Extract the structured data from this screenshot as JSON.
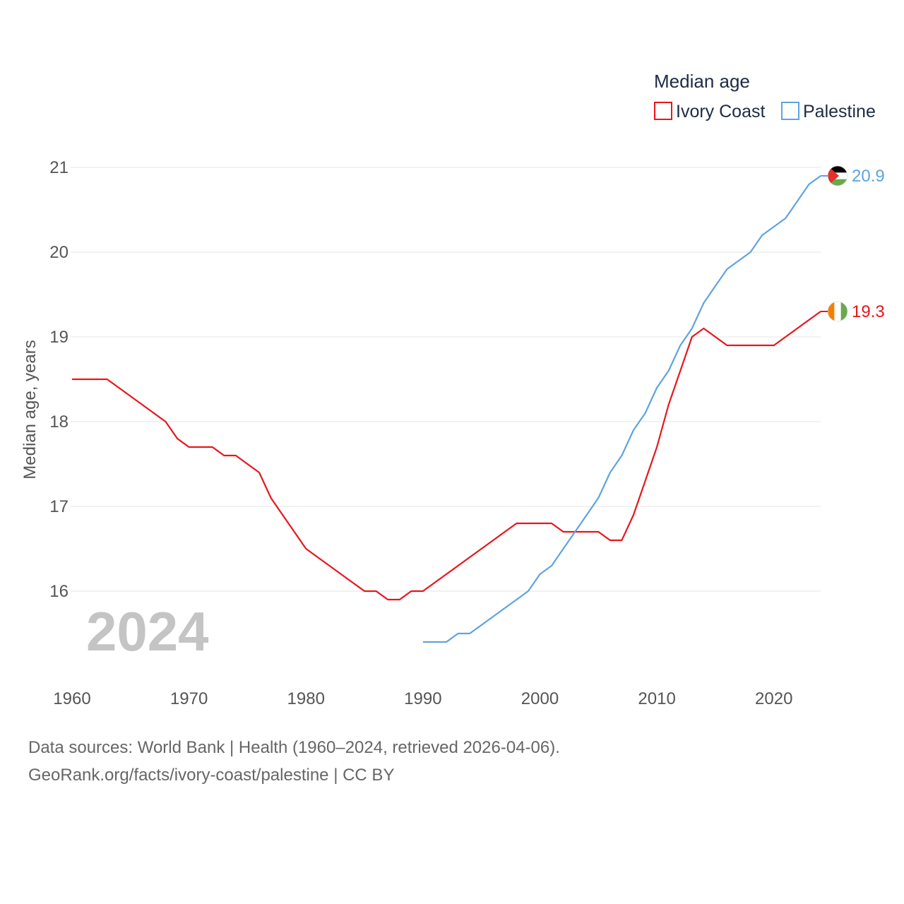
{
  "chart_data": {
    "type": "line",
    "legend_title": "Median age",
    "ylabel": "Median age, years",
    "xlim": [
      1960,
      2024
    ],
    "ylim": [
      15,
      21.3
    ],
    "yticks": [
      16,
      17,
      18,
      19,
      20,
      21
    ],
    "xticks": [
      1960,
      1970,
      1980,
      1990,
      2000,
      2010,
      2020
    ],
    "grid": true,
    "legend_position": "top-right",
    "current_year_label": "2024",
    "series": [
      {
        "name": "Ivory Coast",
        "color": "#e8161c",
        "end_label": "19.3",
        "flag_colors": [
          "#f77f00",
          "#ffffff",
          "#6aa84f"
        ],
        "x": [
          1960,
          1961,
          1962,
          1963,
          1964,
          1965,
          1966,
          1967,
          1968,
          1969,
          1970,
          1971,
          1972,
          1973,
          1974,
          1975,
          1976,
          1977,
          1978,
          1979,
          1980,
          1981,
          1982,
          1983,
          1984,
          1985,
          1986,
          1987,
          1988,
          1989,
          1990,
          1991,
          1992,
          1993,
          1994,
          1995,
          1996,
          1997,
          1998,
          1999,
          2000,
          2001,
          2002,
          2003,
          2004,
          2005,
          2006,
          2007,
          2008,
          2009,
          2010,
          2011,
          2012,
          2013,
          2014,
          2015,
          2016,
          2017,
          2018,
          2019,
          2020,
          2021,
          2022,
          2023,
          2024
        ],
        "values": [
          18.5,
          18.5,
          18.5,
          18.5,
          18.4,
          18.3,
          18.2,
          18.1,
          18.0,
          17.8,
          17.7,
          17.7,
          17.7,
          17.6,
          17.6,
          17.5,
          17.4,
          17.1,
          16.9,
          16.7,
          16.5,
          16.4,
          16.3,
          16.2,
          16.1,
          16.0,
          16.0,
          15.9,
          15.9,
          16.0,
          16.0,
          16.1,
          16.2,
          16.3,
          16.4,
          16.5,
          16.6,
          16.7,
          16.8,
          16.8,
          16.8,
          16.8,
          16.7,
          16.7,
          16.7,
          16.7,
          16.6,
          16.6,
          16.9,
          17.3,
          17.7,
          18.2,
          18.6,
          19.0,
          19.1,
          19.0,
          18.9,
          18.9,
          18.9,
          18.9,
          18.9,
          19.0,
          19.1,
          19.2,
          19.3
        ]
      },
      {
        "name": "Palestine",
        "color": "#5fa3e0",
        "end_label": "20.9",
        "flag_colors": [
          "#000000",
          "#ffffff",
          "#6aa84f",
          "#e4312b"
        ],
        "x": [
          1990,
          1991,
          1992,
          1993,
          1994,
          1995,
          1996,
          1997,
          1998,
          1999,
          2000,
          2001,
          2002,
          2003,
          2004,
          2005,
          2006,
          2007,
          2008,
          2009,
          2010,
          2011,
          2012,
          2013,
          2014,
          2015,
          2016,
          2017,
          2018,
          2019,
          2020,
          2021,
          2022,
          2023,
          2024
        ],
        "values": [
          15.4,
          15.4,
          15.4,
          15.5,
          15.5,
          15.6,
          15.7,
          15.8,
          15.9,
          16.0,
          16.2,
          16.3,
          16.5,
          16.7,
          16.9,
          17.1,
          17.4,
          17.6,
          17.9,
          18.1,
          18.4,
          18.6,
          18.9,
          19.1,
          19.4,
          19.6,
          19.8,
          19.9,
          20.0,
          20.2,
          20.3,
          20.4,
          20.6,
          20.8,
          20.9
        ]
      }
    ]
  },
  "footer": {
    "line1": "Data sources: World Bank | Health (1960–2024, retrieved 2026-04-06).",
    "line2": "GeoRank.org/facts/ivory-coast/palestine | CC BY"
  }
}
